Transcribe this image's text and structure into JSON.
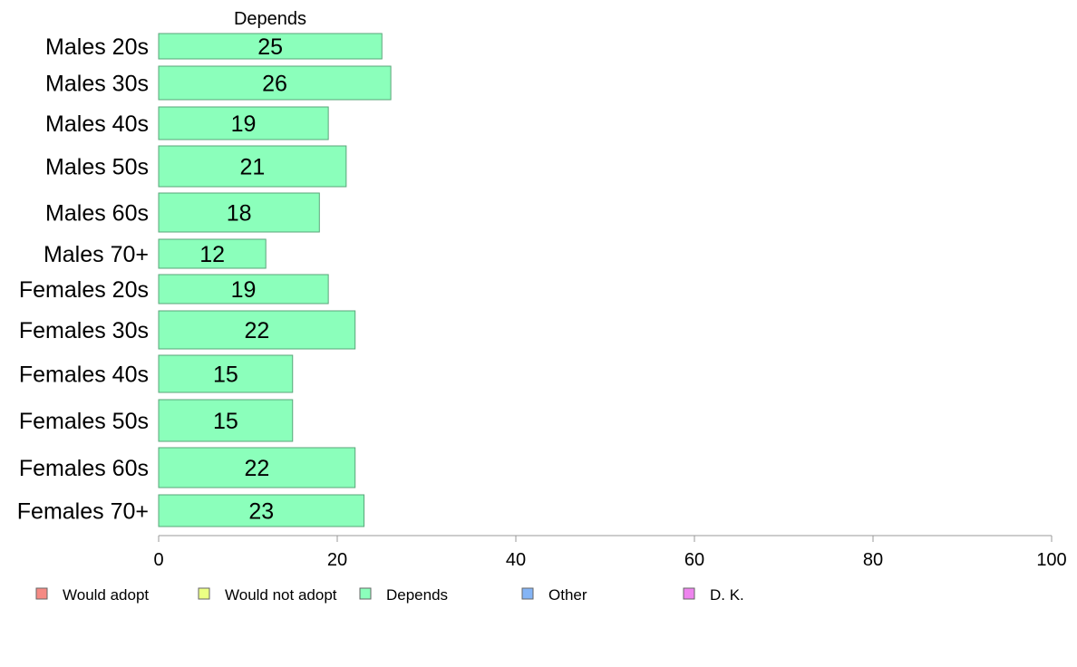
{
  "chart_data": {
    "type": "bar",
    "orientation": "horizontal",
    "series_title": "Depends",
    "categories": [
      "Males 20s",
      "Males 30s",
      "Males 40s",
      "Males 50s",
      "Males 60s",
      "Males 70+",
      "Females 20s",
      "Females 30s",
      "Females 40s",
      "Females 50s",
      "Females 60s",
      "Females 70+"
    ],
    "series": [
      {
        "name": "Depends",
        "values": [
          25,
          26,
          19,
          21,
          18,
          12,
          19,
          22,
          15,
          15,
          22,
          23
        ],
        "color": "#8bffbb"
      }
    ],
    "xlim": [
      0,
      100
    ],
    "xticks": [
      0,
      20,
      40,
      60,
      80,
      100
    ],
    "legend": {
      "placement": "bottom",
      "items": [
        {
          "label": "Would adopt",
          "color": "#f58a84"
        },
        {
          "label": "Would not adopt",
          "color": "#ecff84"
        },
        {
          "label": "Depends",
          "color": "#8bffbb"
        },
        {
          "label": "Other",
          "color": "#84b4f5"
        },
        {
          "label": "D. K.",
          "color": "#ee84ee"
        }
      ]
    },
    "grid": false
  }
}
